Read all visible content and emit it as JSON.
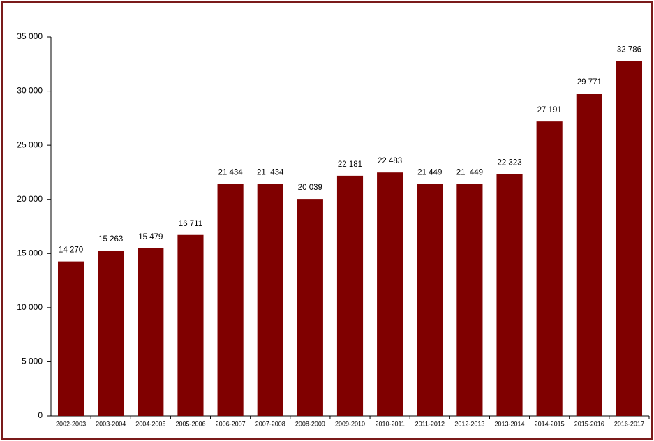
{
  "chart_data": {
    "type": "bar",
    "categories": [
      "2002-2003",
      "2003-2004",
      "2004-2005",
      "2005-2006",
      "2006-2007",
      "2007-2008",
      "2008-2009",
      "2009-2010",
      "2010-2011",
      "2011-2012",
      "2012-2013",
      "2013-2014",
      "2014-2015",
      "2015-2016",
      "2016-2017"
    ],
    "values": [
      14270,
      15263,
      15479,
      16711,
      21434,
      21434,
      20039,
      22181,
      22483,
      21449,
      21449,
      22323,
      27191,
      29771,
      32786
    ],
    "value_labels": [
      "14 270",
      "15 263",
      "15 479",
      "16 711",
      "21 434",
      "21  434",
      "20 039",
      "22 181",
      "22 483",
      "21 449",
      "21  449",
      "22 323",
      "27 191",
      "29 771",
      "32 786"
    ],
    "color": "#800000",
    "ylim": [
      0,
      35000
    ],
    "yticks": [
      0,
      {
        "value": 5000,
        "label": "5 000"
      },
      {
        "value": 10000,
        "label": "10 000"
      },
      {
        "value": 15000,
        "label": "15 000"
      },
      {
        "value": 20000,
        "label": "20 000"
      },
      {
        "value": 25000,
        "label": "25 000"
      },
      {
        "value": 30000,
        "label": "30 000"
      },
      {
        "value": 35000,
        "label": "35 000"
      }
    ],
    "grid": false
  }
}
